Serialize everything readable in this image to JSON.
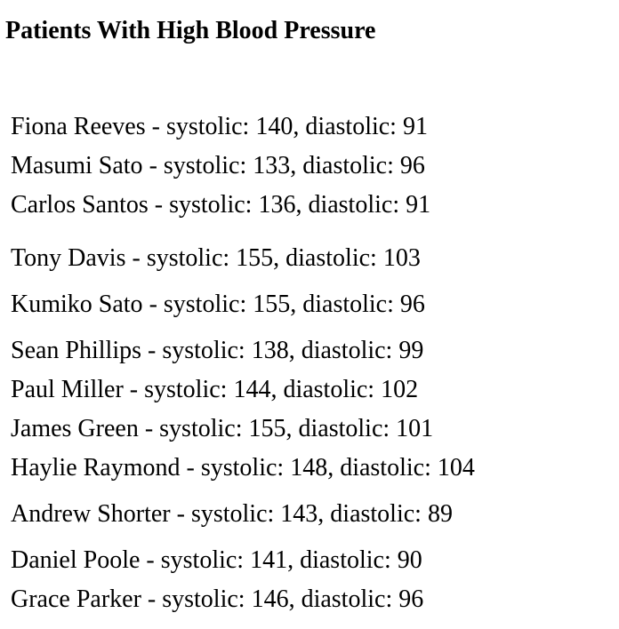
{
  "title": "Patients With High Blood Pressure",
  "patients": [
    {
      "name": "Fiona Reeves",
      "systolic": "140",
      "diastolic": "91"
    },
    {
      "name": "Masumi Sato",
      "systolic": "133",
      "diastolic": "96"
    },
    {
      "name": "Carlos Santos",
      "systolic": "136",
      "diastolic": "91"
    },
    {
      "name": "Tony Davis",
      "systolic": "155",
      "diastolic": "103"
    },
    {
      "name": "Kumiko Sato",
      "systolic": "155",
      "diastolic": "96"
    },
    {
      "name": "Sean Phillips",
      "systolic": "138",
      "diastolic": "99"
    },
    {
      "name": "Paul Miller",
      "systolic": "144",
      "diastolic": "102"
    },
    {
      "name": "James Green",
      "systolic": "155",
      "diastolic": "101"
    },
    {
      "name": "Haylie Raymond",
      "systolic": "148",
      "diastolic": "104"
    },
    {
      "name": "Andrew Shorter",
      "systolic": "143",
      "diastolic": "89"
    },
    {
      "name": "Daniel Poole",
      "systolic": "141",
      "diastolic": "90"
    },
    {
      "name": "Grace Parker",
      "systolic": "146",
      "diastolic": "96"
    }
  ],
  "labels": {
    "separator": " - ",
    "systolic": "systolic: ",
    "comma": ", ",
    "diastolic": "diastolic: "
  }
}
